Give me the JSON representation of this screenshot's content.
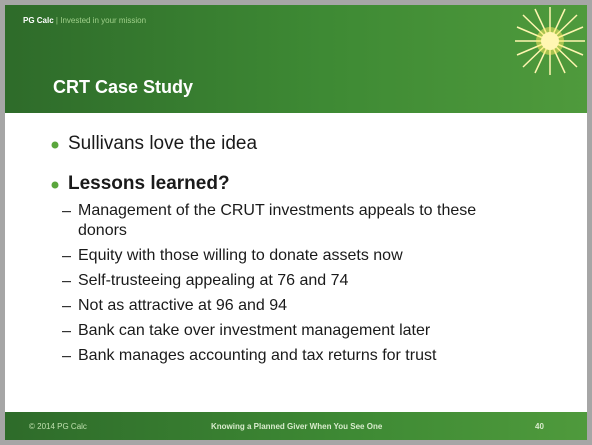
{
  "header": {
    "brand": "PG Calc",
    "separator": "|",
    "tagline": "Invested in your mission"
  },
  "title": "CRT Case Study",
  "bullets": [
    {
      "text": "Sullivans love the idea",
      "bold": false,
      "sub": []
    },
    {
      "text": "Lessons learned?",
      "bold": true,
      "sub": [
        "Management of the CRUT investments appeals to these donors",
        "Equity with those willing to donate assets now",
        "Self-trusteeing appealing at 76 and 74",
        "Not as attractive at 96 and 94",
        "Bank can take over investment management later",
        "Bank manages accounting and tax returns for trust"
      ]
    }
  ],
  "footer": {
    "copyright": "© 2014 PG Calc",
    "center": "Knowing a Planned Giver When You See One",
    "page": "40"
  }
}
